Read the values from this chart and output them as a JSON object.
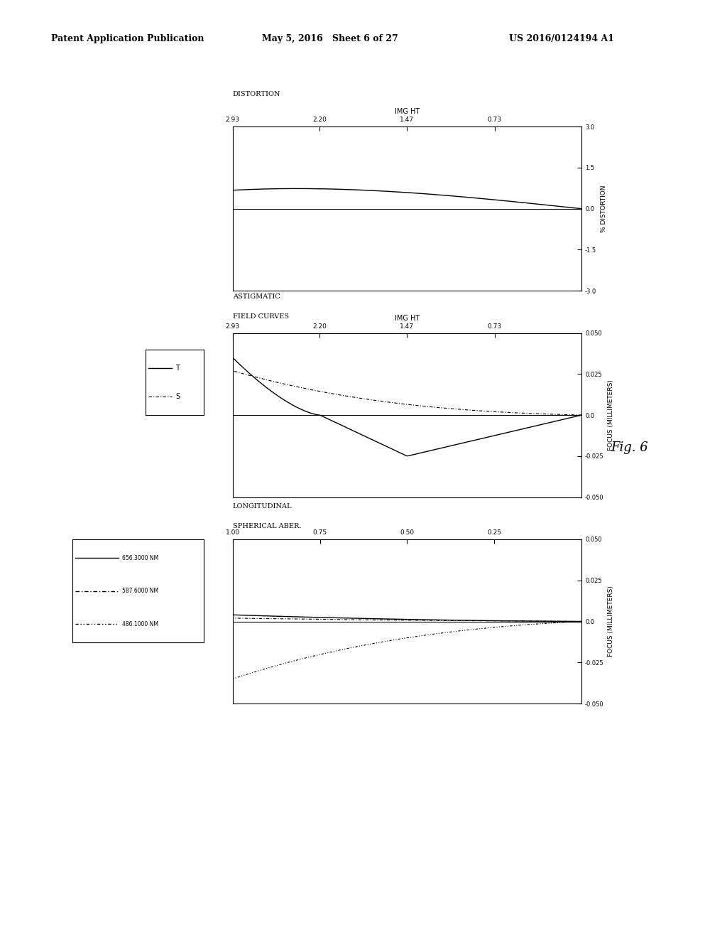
{
  "header_left": "Patent Application Publication",
  "header_mid": "May 5, 2016   Sheet 6 of 27",
  "header_right": "US 2016/0124194 A1",
  "fig_label": "Fig. 6",
  "bg": "#ffffff",
  "plot1_title": [
    "LONGITUDINAL",
    "SPHERICAL ABER."
  ],
  "plot1_xlim": [
    0.0,
    1.0
  ],
  "plot1_xticks": [
    0.25,
    0.5,
    0.75,
    1.0
  ],
  "plot1_xticklabels": [
    "0.25",
    "0.50",
    "0.75",
    "1.00"
  ],
  "plot1_ylim": [
    -0.05,
    0.05
  ],
  "plot1_yticks": [
    -0.05,
    -0.025,
    0.0,
    0.025,
    0.05
  ],
  "plot1_yticklabels": [
    "-0.050",
    "-0.025",
    "0.0",
    "0.025",
    "0.050"
  ],
  "plot1_ylabel": "FOCUS (MILLIMETERS)",
  "plot1_xlabel_label": "",
  "legend1": [
    "656.3000 NM",
    "587.6000 NM",
    "486.1000 NM"
  ],
  "legend1_styles": [
    "solid",
    "dashed",
    "dashdot"
  ],
  "plot2_title": [
    "ASTIGMATIC",
    "FIELD CURVES"
  ],
  "plot2_xlim": [
    0.0,
    2.93
  ],
  "plot2_xticks": [
    0.73,
    1.47,
    2.2,
    2.93
  ],
  "plot2_xticklabels": [
    "0.73",
    "1.47",
    "2.20",
    "2.93"
  ],
  "plot2_ylim": [
    -0.05,
    0.05
  ],
  "plot2_yticks": [
    -0.05,
    -0.025,
    0.0,
    0.025,
    0.05
  ],
  "plot2_yticklabels": [
    "-0.050",
    "-0.025",
    "0.0",
    "0.025",
    "0.050"
  ],
  "plot2_ylabel": "FOCUS (MILLIMETERS)",
  "plot2_xlabel": "IMG HT",
  "legend2": [
    "T",
    "S"
  ],
  "plot3_title": [
    "DISTORTION"
  ],
  "plot3_xlim": [
    0.0,
    2.93
  ],
  "plot3_xticks": [
    0.73,
    1.47,
    2.2,
    2.93
  ],
  "plot3_xticklabels": [
    "0.73",
    "1.47",
    "2.20",
    "2.93"
  ],
  "plot3_ylim": [
    -3.0,
    3.0
  ],
  "plot3_yticks": [
    -3.0,
    -1.5,
    0.0,
    1.5,
    3.0
  ],
  "plot3_yticklabels": [
    "-3.0",
    "-1.5",
    "0.0",
    "1.5",
    "3.0"
  ],
  "plot3_ylabel": "% DISTORTION",
  "plot3_xlabel": "IMG HT"
}
